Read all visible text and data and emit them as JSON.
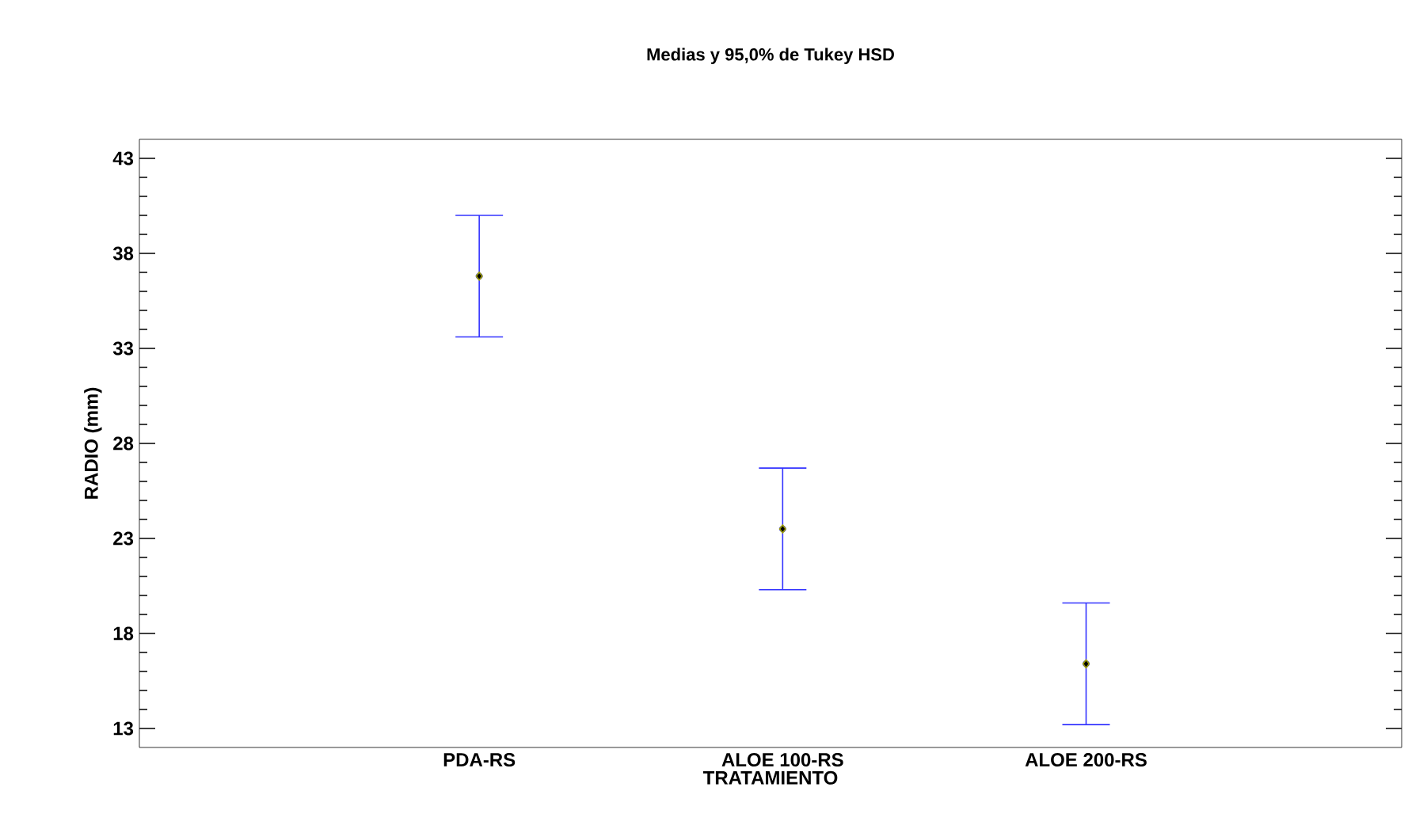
{
  "chart_data": {
    "type": "scatter",
    "title": "Medias y 95,0% de Tukey HSD",
    "xlabel": "TRATAMIENTO",
    "ylabel": "RADIO (mm)",
    "categories": [
      "PDA-RS",
      "ALOE 100-RS",
      "ALOE 200-RS"
    ],
    "series": [
      {
        "color": "#a0a000",
        "values": [
          36.8,
          23.5,
          16.4
        ],
        "errors": [
          3.2,
          3.2,
          3.2
        ]
      }
    ],
    "marker": "diamond",
    "ylim": [
      12,
      44
    ],
    "yticks": [
      13,
      18,
      23,
      28,
      33,
      38,
      43
    ],
    "grid": false
  }
}
